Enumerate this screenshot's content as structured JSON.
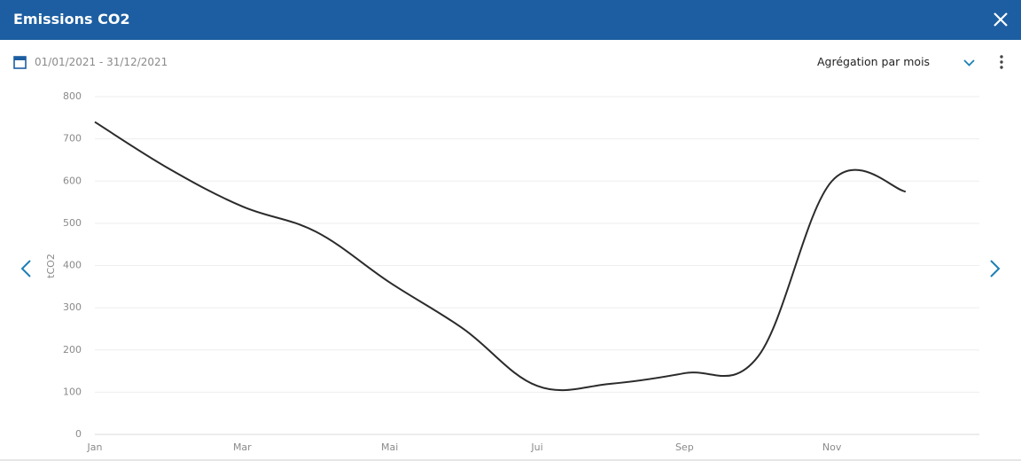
{
  "header": {
    "title": "Emissions CO2"
  },
  "toolbar": {
    "date_range": "01/01/2021 -  31/12/2021",
    "aggregation": "Agrégation par mois"
  },
  "chart_data": {
    "type": "line",
    "y_label": "tCO2",
    "categories": [
      "Jan",
      null,
      "Mar",
      null,
      "Mai",
      null,
      "Jui",
      null,
      "Sep",
      null,
      "Nov",
      null
    ],
    "series": [
      {
        "name": "tCO2",
        "color": "#2b2b2b",
        "values": [
          740,
          630,
          540,
          480,
          360,
          250,
          115,
          120,
          145,
          185,
          600,
          575
        ]
      }
    ],
    "ylim": [
      0,
      800
    ],
    "yticks": [
      0,
      100,
      200,
      300,
      400,
      500,
      600,
      700,
      800
    ],
    "grid": true
  }
}
